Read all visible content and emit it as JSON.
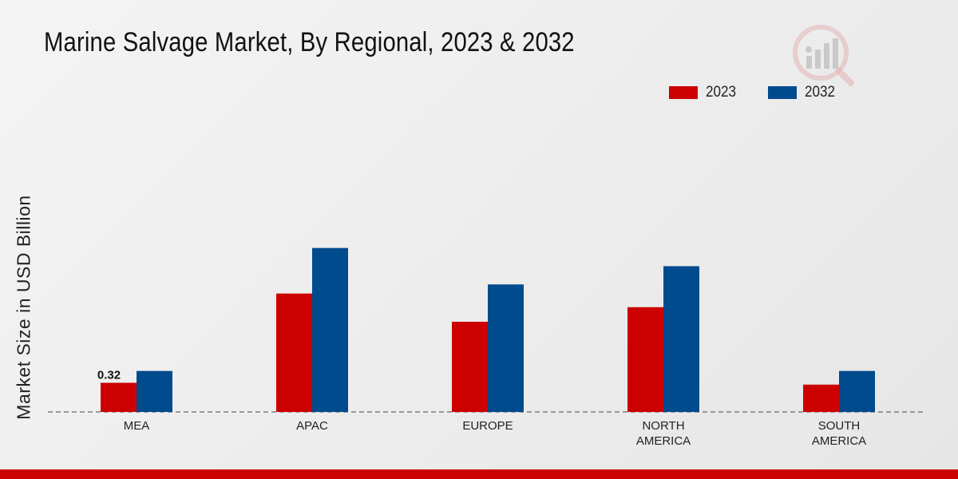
{
  "chart_data": {
    "type": "bar",
    "title": "Marine Salvage Market, By Regional, 2023 & 2032",
    "ylabel": "Market Size in USD Billion",
    "xlabel": "",
    "categories": [
      [
        "MEA"
      ],
      [
        "APAC"
      ],
      [
        "EUROPE"
      ],
      [
        "NORTH",
        "AMERICA"
      ],
      [
        "SOUTH",
        "AMERICA"
      ]
    ],
    "series": [
      {
        "name": "2023",
        "color": "#cc0000",
        "values": [
          0.32,
          1.3,
          0.99,
          1.15,
          0.3
        ]
      },
      {
        "name": "2032",
        "color": "#004b8d",
        "values": [
          0.45,
          1.8,
          1.4,
          1.6,
          0.45
        ]
      }
    ],
    "data_labels": [
      {
        "series": 0,
        "index": 0,
        "text": "0.32"
      }
    ],
    "ylim": [
      0,
      3.12
    ],
    "legend": "top-right",
    "grid": false
  }
}
